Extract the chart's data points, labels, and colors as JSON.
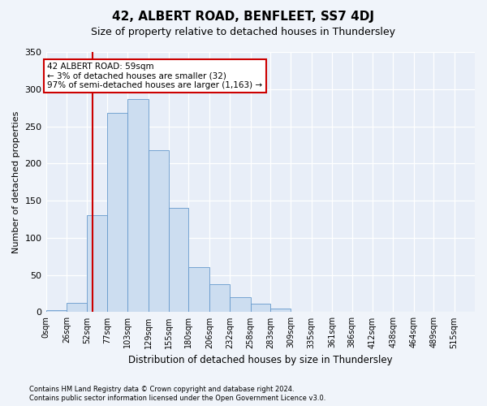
{
  "title": "42, ALBERT ROAD, BENFLEET, SS7 4DJ",
  "subtitle": "Size of property relative to detached houses in Thundersley",
  "xlabel": "Distribution of detached houses by size in Thundersley",
  "ylabel": "Number of detached properties",
  "footnote1": "Contains HM Land Registry data © Crown copyright and database right 2024.",
  "footnote2": "Contains public sector information licensed under the Open Government Licence v3.0.",
  "annotation_line1": "42 ALBERT ROAD: 59sqm",
  "annotation_line2": "← 3% of detached houses are smaller (32)",
  "annotation_line3": "97% of semi-detached houses are larger (1,163) →",
  "bar_color": "#ccddf0",
  "bar_edge_color": "#6699cc",
  "line_color": "#cc0000",
  "annotation_box_edge": "#cc0000",
  "fig_background": "#f0f4fa",
  "plot_background": "#e8eef8",
  "bins": [
    "0sqm",
    "26sqm",
    "52sqm",
    "77sqm",
    "103sqm",
    "129sqm",
    "155sqm",
    "180sqm",
    "206sqm",
    "232sqm",
    "258sqm",
    "283sqm",
    "309sqm",
    "335sqm",
    "361sqm",
    "386sqm",
    "412sqm",
    "438sqm",
    "464sqm",
    "489sqm",
    "515sqm"
  ],
  "values": [
    3,
    13,
    130,
    268,
    287,
    218,
    140,
    60,
    38,
    20,
    11,
    5,
    1,
    0,
    0,
    0,
    0,
    0,
    0,
    0,
    1
  ],
  "property_sqm": 59,
  "bin_edges": [
    0,
    26,
    52,
    77,
    103,
    129,
    155,
    180,
    206,
    232,
    258,
    283,
    309,
    335,
    361,
    386,
    412,
    438,
    464,
    489,
    515,
    541
  ],
  "ylim": [
    0,
    350
  ],
  "yticks": [
    0,
    50,
    100,
    150,
    200,
    250,
    300,
    350
  ]
}
